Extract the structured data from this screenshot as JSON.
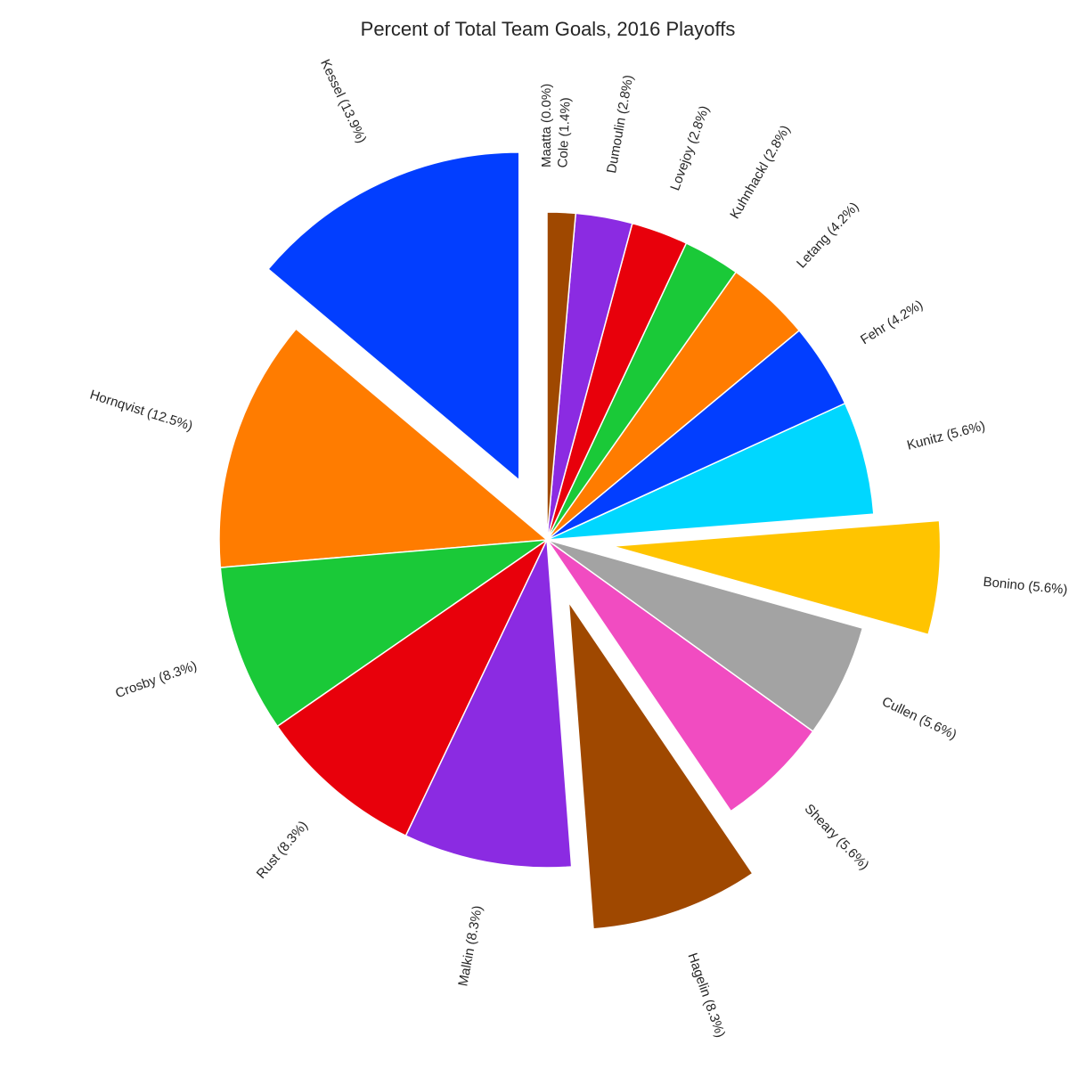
{
  "chart_data": {
    "type": "pie",
    "title": "Percent of Total Team Goals, 2016 Playoffs",
    "start_angle_deg": 90,
    "direction": "counterclockwise",
    "slices": [
      {
        "name": "Maatta",
        "value": 0.0,
        "label": "Maatta (0.0%)",
        "color": "#9e4600",
        "exploded": false
      },
      {
        "name": "Kessel",
        "value": 13.9,
        "label": "Kessel (13.9%)",
        "color": "#023eff",
        "exploded": true
      },
      {
        "name": "Hornqvist",
        "value": 12.5,
        "label": "Hornqvist (12.5%)",
        "color": "#ff7c00",
        "exploded": false
      },
      {
        "name": "Crosby",
        "value": 8.3,
        "label": "Crosby (8.3%)",
        "color": "#1ac938",
        "exploded": false
      },
      {
        "name": "Rust",
        "value": 8.3,
        "label": "Rust (8.3%)",
        "color": "#e8000b",
        "exploded": false
      },
      {
        "name": "Malkin",
        "value": 8.3,
        "label": "Malkin (8.3%)",
        "color": "#8b2be2",
        "exploded": false
      },
      {
        "name": "Hagelin",
        "value": 8.3,
        "label": "Hagelin (8.3%)",
        "color": "#9f4800",
        "exploded": true
      },
      {
        "name": "Sheary",
        "value": 5.6,
        "label": "Sheary (5.6%)",
        "color": "#f14cc1",
        "exploded": false
      },
      {
        "name": "Cullen",
        "value": 5.6,
        "label": "Cullen (5.6%)",
        "color": "#a3a3a3",
        "exploded": false
      },
      {
        "name": "Bonino",
        "value": 5.6,
        "label": "Bonino (5.6%)",
        "color": "#ffc400",
        "exploded": true
      },
      {
        "name": "Kunitz",
        "value": 5.6,
        "label": "Kunitz (5.6%)",
        "color": "#00d7ff",
        "exploded": false
      },
      {
        "name": "Fehr",
        "value": 4.2,
        "label": "Fehr (4.2%)",
        "color": "#023eff",
        "exploded": false
      },
      {
        "name": "Letang",
        "value": 4.2,
        "label": "Letang (4.2%)",
        "color": "#ff7c00",
        "exploded": false
      },
      {
        "name": "Kuhnhackl",
        "value": 2.8,
        "label": "Kuhnhackl (2.8%)",
        "color": "#1ac938",
        "exploded": false
      },
      {
        "name": "Lovejoy",
        "value": 2.8,
        "label": "Lovejoy (2.8%)",
        "color": "#e8000b",
        "exploded": false
      },
      {
        "name": "Dumoulin",
        "value": 2.8,
        "label": "Dumoulin (2.8%)",
        "color": "#8b2be2",
        "exploded": false
      },
      {
        "name": "Cole",
        "value": 1.4,
        "label": "Cole (1.4%)",
        "color": "#9f4800",
        "exploded": false
      }
    ]
  }
}
